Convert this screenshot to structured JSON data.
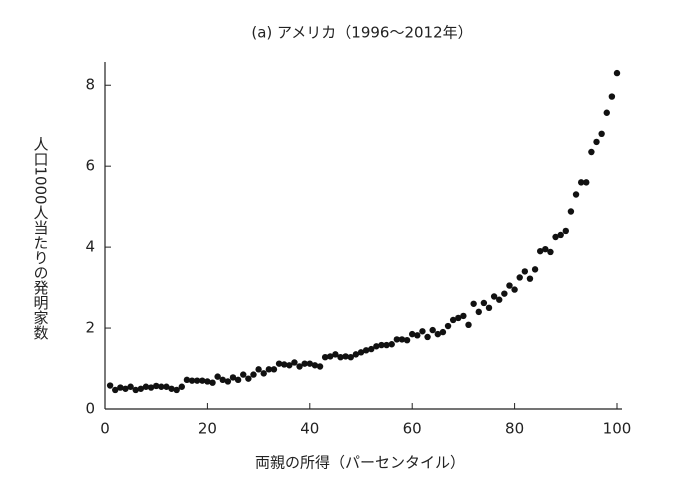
{
  "chart_data": {
    "type": "scatter",
    "title": "(a) アメリカ（1996〜2012年）",
    "y_label": "人口1000人当たりの発明家数",
    "x_label": "両親の所得（パーセンタイル）",
    "color": "#111111",
    "x": [
      1,
      2,
      3,
      4,
      5,
      6,
      7,
      8,
      9,
      10,
      11,
      12,
      13,
      14,
      15,
      16,
      17,
      18,
      19,
      20,
      21,
      22,
      23,
      24,
      25,
      26,
      27,
      28,
      29,
      30,
      31,
      32,
      33,
      34,
      35,
      36,
      37,
      38,
      39,
      40,
      41,
      42,
      43,
      44,
      45,
      46,
      47,
      48,
      49,
      50,
      51,
      52,
      53,
      54,
      55,
      56,
      57,
      58,
      59,
      60,
      61,
      62,
      63,
      64,
      65,
      66,
      67,
      68,
      69,
      70,
      71,
      72,
      73,
      74,
      75,
      76,
      77,
      78,
      79,
      80,
      81,
      82,
      83,
      84,
      85,
      86,
      87,
      88,
      89,
      90,
      91,
      92,
      93,
      94,
      95,
      96,
      97,
      98,
      99,
      100
    ],
    "values": [
      0.58,
      0.47,
      0.53,
      0.5,
      0.55,
      0.47,
      0.5,
      0.55,
      0.53,
      0.57,
      0.55,
      0.55,
      0.5,
      0.47,
      0.55,
      0.72,
      0.7,
      0.7,
      0.7,
      0.68,
      0.65,
      0.8,
      0.72,
      0.68,
      0.78,
      0.72,
      0.85,
      0.75,
      0.85,
      0.98,
      0.88,
      0.98,
      0.98,
      1.12,
      1.1,
      1.08,
      1.15,
      1.05,
      1.12,
      1.12,
      1.08,
      1.05,
      1.28,
      1.3,
      1.35,
      1.28,
      1.3,
      1.28,
      1.35,
      1.4,
      1.45,
      1.48,
      1.55,
      1.58,
      1.58,
      1.6,
      1.72,
      1.72,
      1.7,
      1.85,
      1.82,
      1.92,
      1.78,
      1.95,
      1.85,
      1.9,
      2.05,
      2.2,
      2.25,
      2.3,
      2.08,
      2.6,
      2.4,
      2.62,
      2.5,
      2.78,
      2.7,
      2.85,
      3.05,
      2.95,
      3.25,
      3.4,
      3.22,
      3.45,
      3.9,
      3.95,
      3.88,
      4.25,
      4.3,
      4.4,
      4.88,
      5.3,
      5.6,
      5.6,
      6.35,
      6.6,
      6.8,
      7.32,
      7.72,
      8.3
    ],
    "xlim": [
      0,
      100
    ],
    "ylim": [
      0,
      8.5
    ],
    "xticks": [
      0,
      20,
      40,
      60,
      80,
      100
    ],
    "yticks": [
      0,
      2,
      4,
      6,
      8
    ]
  }
}
